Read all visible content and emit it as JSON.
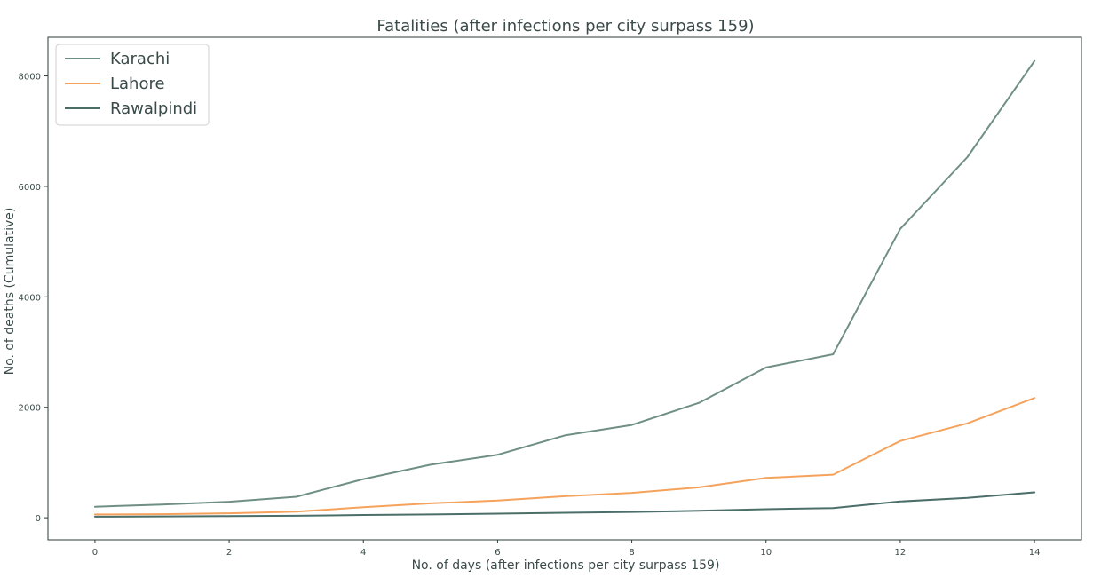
{
  "chart_data": {
    "type": "line",
    "title": "Fatalities (after infections per city surpass 159)",
    "xlabel": "No. of days (after infections per city surpass 159)",
    "ylabel": "No. of deaths (Cumulative)",
    "x": [
      0,
      1,
      2,
      3,
      4,
      5,
      6,
      7,
      8,
      9,
      10,
      11,
      12,
      13,
      14
    ],
    "xlim": [
      -0.7,
      14.7
    ],
    "ylim": [
      -400,
      8700
    ],
    "xticks": [
      0,
      2,
      4,
      6,
      8,
      10,
      12,
      14
    ],
    "yticks": [
      0,
      2000,
      4000,
      6000,
      8000
    ],
    "grid": false,
    "legend_position": "top-left",
    "series": [
      {
        "name": "Karachi",
        "color": "#6f8f86",
        "values": [
          200,
          240,
          290,
          380,
          700,
          960,
          1140,
          1490,
          1680,
          2080,
          2720,
          2960,
          5230,
          6530,
          8270
        ]
      },
      {
        "name": "Lahore",
        "color": "#f5a25d",
        "values": [
          60,
          65,
          80,
          110,
          190,
          260,
          310,
          390,
          450,
          550,
          720,
          780,
          1390,
          1710,
          2170
        ]
      },
      {
        "name": "Rawalpindi",
        "color": "#4b6e69",
        "values": [
          20,
          25,
          30,
          35,
          50,
          60,
          75,
          90,
          105,
          125,
          155,
          175,
          295,
          360,
          460
        ]
      }
    ]
  }
}
